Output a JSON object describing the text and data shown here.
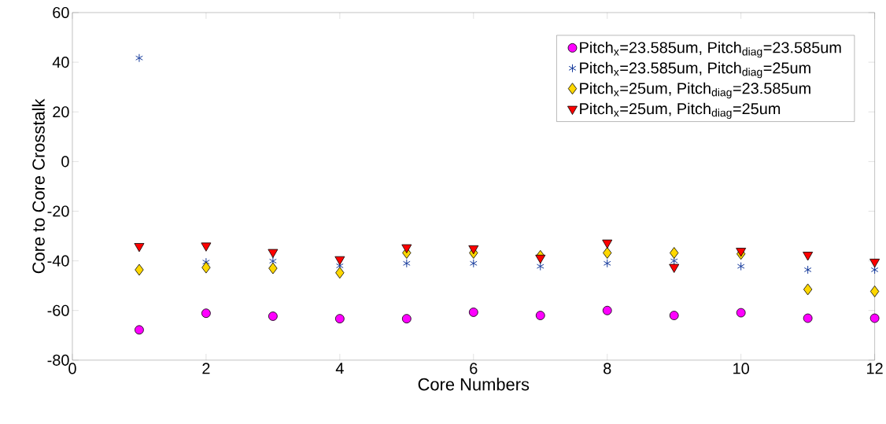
{
  "chart_data": {
    "type": "scatter",
    "xlabel": "Core Numbers",
    "ylabel": "Core to Core Crosstalk",
    "x": [
      1,
      2,
      3,
      4,
      5,
      6,
      7,
      8,
      9,
      10,
      11,
      12
    ],
    "series": [
      {
        "name": "Pitch$_{x}$=23.585um, Pitch$_{diag}$=23.585um",
        "color": "#ff00ff",
        "marker": "circle",
        "values": [
          -67.8,
          -61.1,
          -62.3,
          -63.3,
          -63.3,
          -60.7,
          -62.0,
          -60.0,
          -62.0,
          -60.9,
          -63.1,
          -63.1
        ]
      },
      {
        "name": "Pitch$_{x}$=23.585um, Pitch$_{diag}$=25um",
        "color": "#13389b",
        "marker": "cross",
        "values": [
          41.7,
          -40.5,
          -40.1,
          -42.0,
          -41.0,
          -41.0,
          -42.2,
          -41.0,
          -40.0,
          -42.2,
          -43.6,
          -43.6
        ]
      },
      {
        "name": "Pitch$_{x}$=25um, Pitch$_{diag}$=23.585um",
        "color": "#ffd700",
        "marker": "diamond",
        "values": [
          -43.6,
          -42.7,
          -43.0,
          -44.8,
          -36.8,
          -36.8,
          -38.0,
          -36.8,
          -36.8,
          -37.2,
          -51.5,
          -52.3
        ]
      },
      {
        "name": "Pitch$_{x}$=25um, Pitch$_{diag}$=25um",
        "color": "#ff0000",
        "marker": "triangle",
        "values": [
          -34.1,
          -33.9,
          -36.5,
          -39.4,
          -34.6,
          -35.0,
          -38.8,
          -32.7,
          -42.5,
          -36.0,
          -37.6,
          -40.4
        ]
      }
    ],
    "xlim": [
      0,
      12
    ],
    "ylim": [
      -80,
      60
    ],
    "xticks": [
      0,
      2,
      4,
      6,
      8,
      10,
      12
    ],
    "yticks": [
      -80,
      -60,
      -40,
      -20,
      0,
      20,
      40,
      60
    ],
    "legend": "top right",
    "grid": false
  }
}
